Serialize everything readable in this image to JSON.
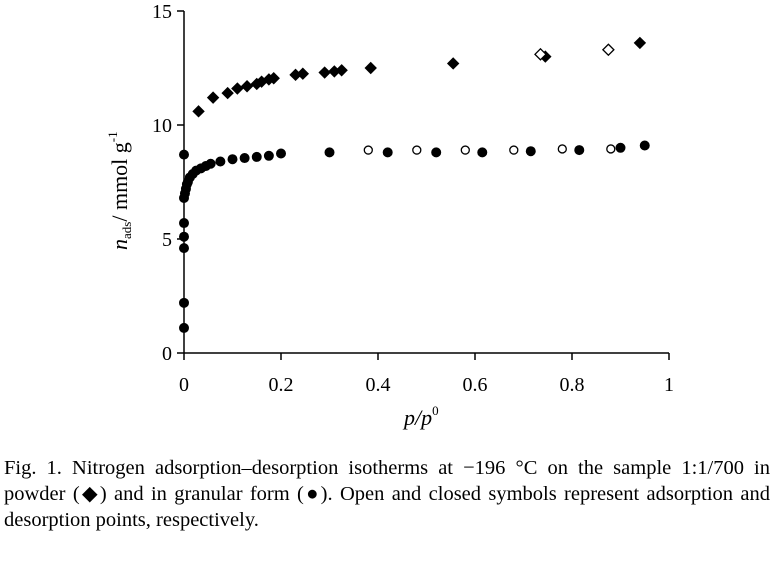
{
  "chart_data": {
    "type": "scatter",
    "xlabel_main": "p/p",
    "xlabel_sup": "0",
    "ylabel_main": "n",
    "ylabel_sub": "ads",
    "ylabel_unit": "/ mmol g",
    "ylabel_sup": "-1",
    "xlim": [
      0,
      1
    ],
    "ylim": [
      0,
      15
    ],
    "x_ticks": [
      0,
      0.2,
      0.4,
      0.6,
      0.8,
      1
    ],
    "x_tick_labels": [
      "0",
      "0.2",
      "0.4",
      "0.6",
      "0.8",
      "1"
    ],
    "y_ticks": [
      0,
      5,
      10,
      15
    ],
    "y_tick_labels": [
      "0",
      "5",
      "10",
      "15"
    ],
    "grid": false,
    "legend": "none",
    "series": [
      {
        "marker": "diamond",
        "fill": "closed",
        "points": [
          [
            0.03,
            10.6
          ],
          [
            0.06,
            11.2
          ],
          [
            0.09,
            11.4
          ],
          [
            0.11,
            11.6
          ],
          [
            0.13,
            11.7
          ],
          [
            0.15,
            11.8
          ],
          [
            0.16,
            11.9
          ],
          [
            0.175,
            12.0
          ],
          [
            0.185,
            12.05
          ],
          [
            0.23,
            12.2
          ],
          [
            0.245,
            12.25
          ],
          [
            0.29,
            12.3
          ],
          [
            0.31,
            12.35
          ],
          [
            0.325,
            12.4
          ],
          [
            0.385,
            12.5
          ],
          [
            0.555,
            12.7
          ],
          [
            0.745,
            13.0
          ],
          [
            0.94,
            13.6
          ]
        ]
      },
      {
        "marker": "diamond",
        "fill": "open",
        "points": [
          [
            0.735,
            13.1
          ],
          [
            0.875,
            13.3
          ]
        ]
      },
      {
        "marker": "circle",
        "fill": "closed",
        "points": [
          [
            0.0,
            1.1
          ],
          [
            0.0,
            2.2
          ],
          [
            0.0,
            4.6
          ],
          [
            0.0,
            5.1
          ],
          [
            0.0,
            5.7
          ],
          [
            0.0,
            6.8
          ],
          [
            0.002,
            7.0
          ],
          [
            0.004,
            7.2
          ],
          [
            0.006,
            7.4
          ],
          [
            0.008,
            7.5
          ],
          [
            0.012,
            7.7
          ],
          [
            0.018,
            7.85
          ],
          [
            0.025,
            8.0
          ],
          [
            0.035,
            8.1
          ],
          [
            0.045,
            8.2
          ],
          [
            0.055,
            8.3
          ],
          [
            0.075,
            8.4
          ],
          [
            0.1,
            8.5
          ],
          [
            0.125,
            8.55
          ],
          [
            0.15,
            8.6
          ],
          [
            0.175,
            8.65
          ],
          [
            0.2,
            8.75
          ],
          [
            0.3,
            8.8
          ],
          [
            0.42,
            8.8
          ],
          [
            0.52,
            8.8
          ],
          [
            0.615,
            8.8
          ],
          [
            0.715,
            8.85
          ],
          [
            0.815,
            8.9
          ],
          [
            0.9,
            9.0
          ],
          [
            0.95,
            9.1
          ],
          [
            0.0,
            8.7
          ]
        ]
      },
      {
        "marker": "circle",
        "fill": "open",
        "points": [
          [
            0.38,
            8.9
          ],
          [
            0.48,
            8.9
          ],
          [
            0.58,
            8.9
          ],
          [
            0.68,
            8.9
          ],
          [
            0.78,
            8.95
          ],
          [
            0.88,
            8.95
          ]
        ]
      }
    ]
  },
  "caption": "Fig. 1. Nitrogen adsorption–desorption isotherms at −196 °C on the sample 1:1/700 in powder (◆) and in granular form (●). Open and closed symbols represent adsorption and desorption points, respectively."
}
